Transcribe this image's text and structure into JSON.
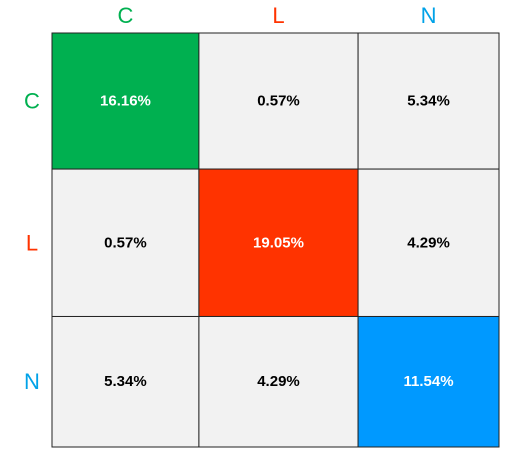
{
  "chart_data": {
    "type": "heatmap",
    "x_categories": [
      "C",
      "L",
      "N"
    ],
    "y_categories": [
      "C",
      "L",
      "N"
    ],
    "category_colors": {
      "C": "#00b050",
      "L": "#ff3300",
      "N": "#00a2e8"
    },
    "values": [
      [
        16.16,
        0.57,
        5.34
      ],
      [
        0.57,
        19.05,
        4.29
      ],
      [
        5.34,
        4.29,
        11.54
      ]
    ],
    "value_labels": [
      [
        "16.16%",
        "0.57%",
        "5.34%"
      ],
      [
        "0.57%",
        "19.05%",
        "4.29%"
      ],
      [
        "5.34%",
        "4.29%",
        "11.54%"
      ]
    ],
    "cell_colors": {
      "diagonal": [
        "#00b050",
        "#ff3300",
        "#0099ff"
      ],
      "off_diagonal": "#f2f2f2",
      "border": "#222222"
    },
    "text_colors": {
      "diagonal": "#ffffff",
      "off_diagonal": "#000000"
    },
    "unit": "%"
  }
}
